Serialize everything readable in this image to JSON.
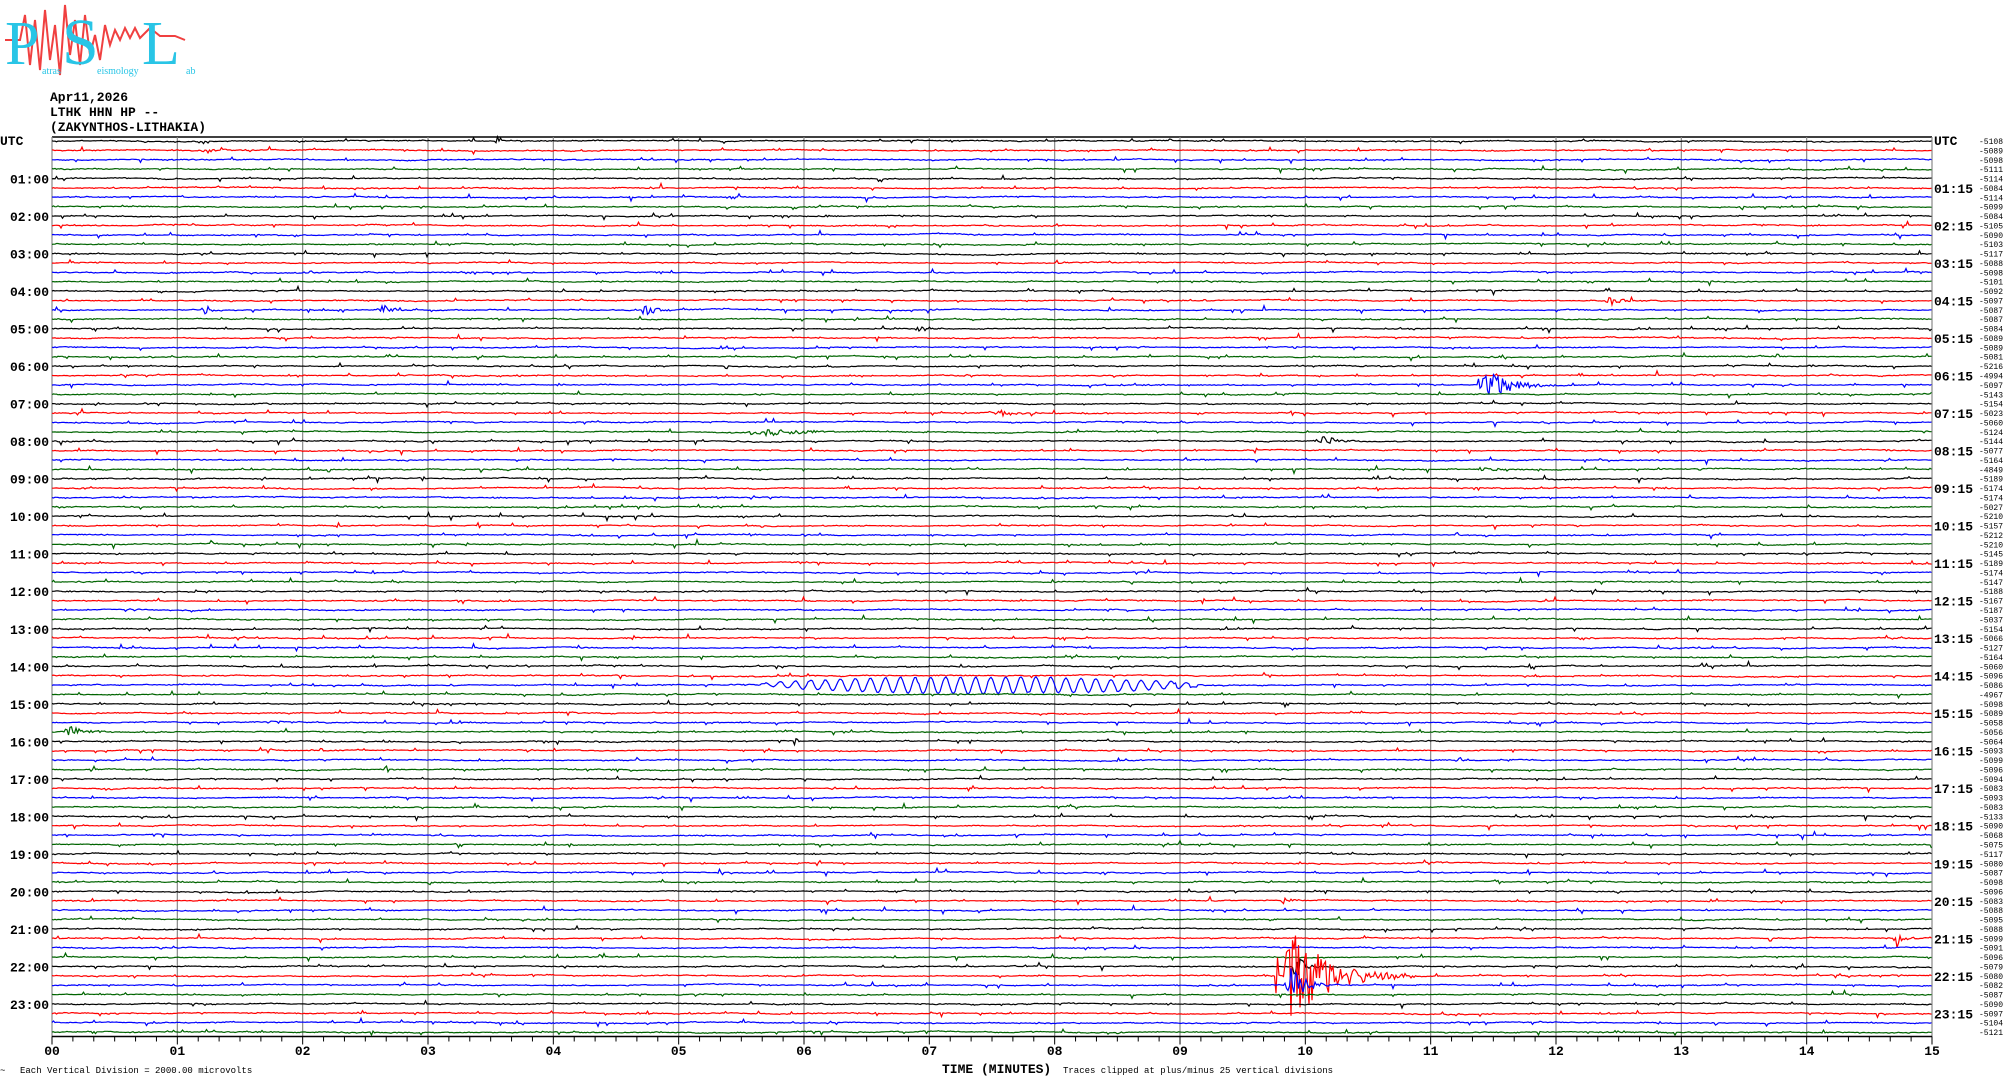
{
  "logo": {
    "letters": [
      "P",
      "S",
      "L"
    ],
    "words": [
      "atras",
      "eismology",
      "ab"
    ],
    "colors": {
      "letters": "#29c5e6",
      "wave": "#f04040"
    }
  },
  "header": {
    "date": "Apr11,2026",
    "station": "LTHK HHN HP --",
    "location": "(ZAKYNTHOS-LITHAKIA)"
  },
  "chart_data": {
    "type": "line",
    "title": "",
    "xlabel": "TIME (MINUTES)",
    "xlim": [
      0,
      15
    ],
    "x_ticks": [
      "00",
      "01",
      "02",
      "03",
      "04",
      "05",
      "06",
      "07",
      "08",
      "09",
      "10",
      "11",
      "12",
      "13",
      "14",
      "15"
    ],
    "minor_ticks_per_minute": 6,
    "vertical_grid": true,
    "left_axis_title": "UTC",
    "right_axis_title": "UTC",
    "rows_per_hour": 4,
    "minutes_per_row": 15,
    "trace_colors": [
      "#000000",
      "#ff0000",
      "#0000ff",
      "#006400"
    ],
    "left_hour_labels": [
      "01:00",
      "02:00",
      "03:00",
      "04:00",
      "05:00",
      "06:00",
      "07:00",
      "08:00",
      "09:00",
      "10:00",
      "11:00",
      "12:00",
      "13:00",
      "14:00",
      "15:00",
      "16:00",
      "17:00",
      "18:00",
      "19:00",
      "20:00",
      "21:00",
      "22:00",
      "23:00"
    ],
    "right_hour_labels": [
      "01:15",
      "02:15",
      "03:15",
      "04:15",
      "05:15",
      "06:15",
      "07:15",
      "08:15",
      "09:15",
      "10:15",
      "11:15",
      "12:15",
      "13:15",
      "14:15",
      "15:15",
      "16:15",
      "17:15",
      "18:15",
      "19:15",
      "20:15",
      "21:15",
      "22:15",
      "23:15"
    ],
    "row_offsets": [
      "-5108",
      "-5089",
      "-5098",
      "-5111",
      "-5114",
      "-5084",
      "-5114",
      "-5099",
      "-5084",
      "-5105",
      "-5090",
      "-5103",
      "-5117",
      "-5088",
      "-5098",
      "-5101",
      "-5092",
      "-5097",
      "-5087",
      "-5087",
      "-5084",
      "-5089",
      "-5089",
      "-5081",
      "-5216",
      "-4994",
      "-5097",
      "-5143",
      "-5154",
      "-5023",
      "-5060",
      "-5124",
      "-5144",
      "-5077",
      "-5164",
      "-4849",
      "-5189",
      "-5174",
      "-5174",
      "-5027",
      "-5210",
      "-5157",
      "-5212",
      "-5210",
      "-5145",
      "-5189",
      "-5174",
      "-5147",
      "-5188",
      "-5167",
      "-5187",
      "-5037",
      "-5154",
      "-5066",
      "-5127",
      "-5164",
      "-5060",
      "-5096",
      "-5086",
      "-4967",
      "-5098",
      "-5089",
      "-5058",
      "-5056",
      "-5064",
      "-5093",
      "-5099",
      "-5096",
      "-5094",
      "-5083",
      "-5093",
      "-5083",
      "-5133",
      "-5090",
      "-5068",
      "-5075",
      "-5117",
      "-5080",
      "-5087",
      "-5098",
      "-5096",
      "-5083",
      "-5088",
      "-5095",
      "-5088",
      "-5099",
      "-5091",
      "-5096",
      "-5079",
      "-5080",
      "-5082",
      "-5087",
      "-5090",
      "-5097",
      "-5104",
      "-5121"
    ],
    "events": [
      {
        "row": 1,
        "minute": 1.2,
        "duration": 0.3,
        "amplitude_div": 0.4
      },
      {
        "row": 17,
        "minute": 12.4,
        "duration": 0.3,
        "amplitude_div": 0.8
      },
      {
        "row": 18,
        "minute": 1.2,
        "duration": 0.2,
        "amplitude_div": 0.7
      },
      {
        "row": 18,
        "minute": 2.6,
        "duration": 0.3,
        "amplitude_div": 0.8
      },
      {
        "row": 18,
        "minute": 4.7,
        "duration": 0.3,
        "amplitude_div": 0.8
      },
      {
        "row": 20,
        "minute": 6.9,
        "duration": 0.2,
        "amplitude_div": 0.6
      },
      {
        "row": 26,
        "minute": 11.4,
        "duration": 0.5,
        "amplitude_div": 2.6
      },
      {
        "row": 31,
        "minute": 5.6,
        "duration": 0.9,
        "amplitude_div": 0.6
      },
      {
        "row": 32,
        "minute": 10.1,
        "duration": 0.3,
        "amplitude_div": 1.0
      },
      {
        "row": 35,
        "minute": 11.4,
        "duration": 0.2,
        "amplitude_div": 0.8
      },
      {
        "row": 29,
        "minute": 7.5,
        "duration": 0.5,
        "amplitude_div": 0.5
      },
      {
        "row": 63,
        "minute": 0.1,
        "duration": 0.3,
        "amplitude_div": 1.0
      },
      {
        "row": 81,
        "minute": 9.8,
        "duration": 0.2,
        "amplitude_div": 0.6
      },
      {
        "row": 85,
        "minute": 14.7,
        "duration": 0.2,
        "amplitude_div": 1.6
      },
      {
        "row": 89,
        "minute": 9.8,
        "duration": 0.9,
        "amplitude_div": 6.5
      },
      {
        "row": 88,
        "minute": 9.9,
        "duration": 0.2,
        "amplitude_div": 2.0
      },
      {
        "row": 90,
        "minute": 9.85,
        "duration": 0.3,
        "amplitude_div": 3.0
      }
    ],
    "long_period_waves": [
      {
        "row": 58,
        "start_minute": 5.6,
        "end_minute": 9.2,
        "amplitude_div": 0.9,
        "period_minutes": 0.12
      }
    ],
    "footer": {
      "scale_note": "Each Vertical Division = 2000.00 microvolts",
      "clip_note": "Traces clipped at plus/minus 25 vertical divisions",
      "corner_mark": "~"
    }
  }
}
